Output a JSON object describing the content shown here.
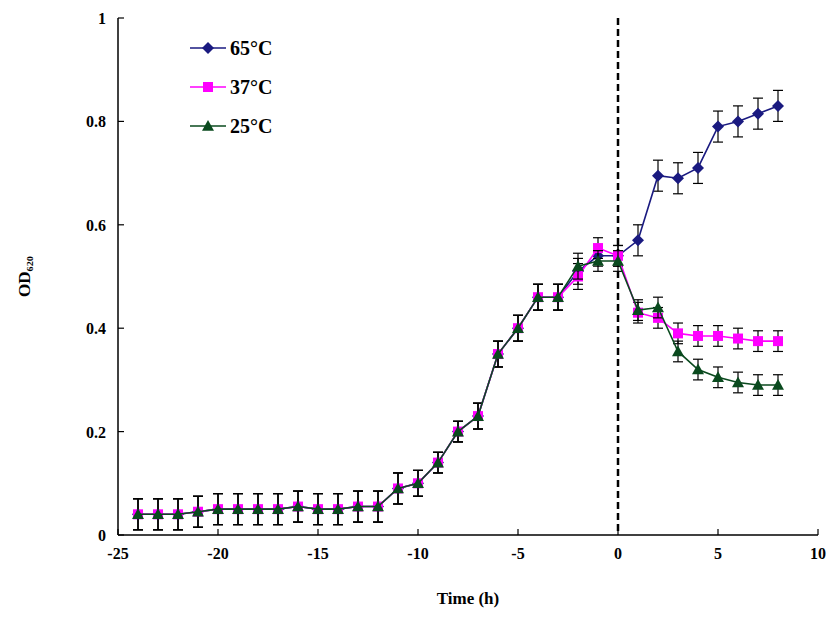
{
  "chart_data": {
    "type": "line",
    "x_label": "Time (h)",
    "y_label": "OD₆₂₀",
    "x": [
      -24,
      -23,
      -22,
      -21,
      -20,
      -19,
      -18,
      -17,
      -16,
      -15,
      -14,
      -13,
      -12,
      -11,
      -10,
      -9,
      -8,
      -7,
      -6,
      -5,
      -4,
      -3,
      -2,
      -1,
      0,
      1,
      2,
      3,
      4,
      5,
      6,
      7,
      8
    ],
    "xlim": [
      -25,
      10
    ],
    "xticks": [
      -25,
      -20,
      -15,
      -10,
      -5,
      0,
      5,
      10
    ],
    "ylim": [
      0,
      1
    ],
    "yticks": [
      0,
      0.2,
      0.4,
      0.6,
      0.8,
      1
    ],
    "grid": false,
    "legend": "top-left",
    "reference_lines": [
      {
        "x": 0,
        "line_style": "dashed"
      }
    ],
    "series": [
      {
        "name": "65°C",
        "color": "#1a1a80",
        "marker": "diamond",
        "line_style": "solid",
        "values": [
          0.04,
          0.04,
          0.04,
          0.045,
          0.05,
          0.05,
          0.05,
          0.05,
          0.055,
          0.05,
          0.05,
          0.055,
          0.055,
          0.09,
          0.1,
          0.14,
          0.2,
          0.23,
          0.35,
          0.4,
          0.46,
          0.46,
          0.51,
          0.54,
          0.54,
          0.57,
          0.695,
          0.69,
          0.71,
          0.79,
          0.8,
          0.815,
          0.83
        ],
        "errors": [
          0.03,
          0.03,
          0.03,
          0.03,
          0.03,
          0.03,
          0.03,
          0.03,
          0.03,
          0.03,
          0.03,
          0.03,
          0.03,
          0.03,
          0.025,
          0.02,
          0.02,
          0.025,
          0.025,
          0.025,
          0.025,
          0.025,
          0.025,
          0.02,
          0.02,
          0.03,
          0.03,
          0.03,
          0.03,
          0.03,
          0.03,
          0.03,
          0.03
        ]
      },
      {
        "name": "37°C",
        "color": "#ff00ff",
        "marker": "square",
        "line_style": "solid",
        "values": [
          0.04,
          0.04,
          0.04,
          0.045,
          0.05,
          0.05,
          0.05,
          0.05,
          0.055,
          0.05,
          0.05,
          0.055,
          0.055,
          0.09,
          0.1,
          0.14,
          0.2,
          0.23,
          0.35,
          0.4,
          0.46,
          0.46,
          0.5,
          0.555,
          0.54,
          0.43,
          0.42,
          0.39,
          0.385,
          0.385,
          0.38,
          0.375,
          0.375
        ],
        "errors": [
          0.03,
          0.03,
          0.03,
          0.03,
          0.03,
          0.03,
          0.03,
          0.03,
          0.03,
          0.03,
          0.03,
          0.03,
          0.03,
          0.03,
          0.025,
          0.02,
          0.02,
          0.025,
          0.025,
          0.025,
          0.025,
          0.025,
          0.025,
          0.02,
          0.02,
          0.02,
          0.02,
          0.02,
          0.02,
          0.02,
          0.02,
          0.02,
          0.02
        ]
      },
      {
        "name": "25°C",
        "color": "#0a4a1e",
        "marker": "triangle",
        "line_style": "solid",
        "values": [
          0.04,
          0.04,
          0.04,
          0.045,
          0.05,
          0.05,
          0.05,
          0.05,
          0.055,
          0.05,
          0.05,
          0.055,
          0.055,
          0.09,
          0.1,
          0.14,
          0.2,
          0.23,
          0.35,
          0.4,
          0.46,
          0.46,
          0.52,
          0.53,
          0.53,
          0.435,
          0.44,
          0.355,
          0.32,
          0.305,
          0.295,
          0.29,
          0.29
        ],
        "errors": [
          0.03,
          0.03,
          0.03,
          0.03,
          0.03,
          0.03,
          0.03,
          0.03,
          0.03,
          0.03,
          0.03,
          0.03,
          0.03,
          0.03,
          0.025,
          0.02,
          0.02,
          0.025,
          0.025,
          0.025,
          0.025,
          0.025,
          0.025,
          0.02,
          0.02,
          0.02,
          0.02,
          0.02,
          0.02,
          0.02,
          0.02,
          0.02,
          0.02
        ]
      }
    ]
  }
}
